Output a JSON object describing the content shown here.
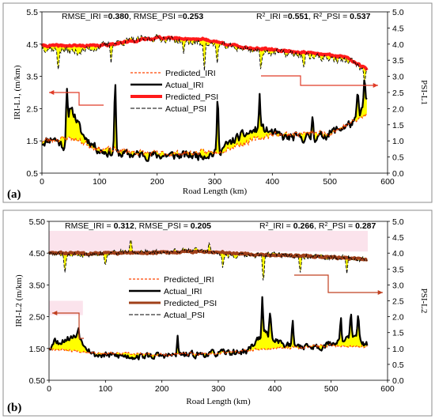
{
  "chart_data": [
    {
      "type": "line",
      "panel_label": "(a)",
      "xlabel": "Road Length (km)",
      "ylabel_left": "IRI-L1, (m/km)",
      "ylabel_right": "PSI-L1",
      "xlim": [
        0,
        600
      ],
      "ylim_left": [
        0.5,
        5.5
      ],
      "ylim_right": [
        0.0,
        5.0
      ],
      "x_ticks": [
        "0",
        "100",
        "200",
        "300",
        "400",
        "500",
        "600"
      ],
      "y_left_ticks": [
        "0.5",
        "1.5",
        "2.5",
        "3.5",
        "4.5",
        "5.5"
      ],
      "y_right_ticks": [
        "0.0",
        "0.5",
        "1.0",
        "1.5",
        "2.0",
        "2.5",
        "3.0",
        "3.5",
        "4.0",
        "4.5",
        "5.0"
      ],
      "stats_left": {
        "pre1": "RMSE_IRI =",
        "val1": "0.380",
        "pre2": ", RMSE_PSI =",
        "val2": "0.253"
      },
      "stats_right": {
        "r": "R",
        "sup": "2",
        "pre1": "_IRI =",
        "val1": "0.551",
        "mid": ",   R",
        "sup2": "2",
        "pre2": "_PSI = ",
        "val2": "0.537"
      },
      "legend": [
        "Predicted_IRI",
        "Actual_IRI",
        "Predicted_PSI",
        "Actual_PSI"
      ],
      "colors": {
        "predicted_iri": "#ff4500",
        "actual_iri": "#000000",
        "predicted_psi": "#ff1a1a",
        "actual_psi": "#000000",
        "fill": "#ffff00",
        "arrow": "#e03c28"
      },
      "series": [
        {
          "name": "Actual_IRI",
          "axis": "left",
          "seed": 11,
          "base": [
            [
              0,
              1.45
            ],
            [
              20,
              1.6
            ],
            [
              40,
              1.3
            ],
            [
              50,
              2.6
            ],
            [
              70,
              1.7
            ],
            [
              100,
              1.2
            ],
            [
              130,
              1.1
            ],
            [
              200,
              1.05
            ],
            [
              260,
              1.05
            ],
            [
              300,
              1.1
            ],
            [
              340,
              1.6
            ],
            [
              380,
              1.9
            ],
            [
              420,
              1.6
            ],
            [
              480,
              1.6
            ],
            [
              520,
              1.9
            ],
            [
              545,
              2.1
            ],
            [
              565,
              2.8
            ]
          ],
          "noise": 0.22,
          "spikes": [
            [
              43,
              3.25
            ],
            [
              127,
              3.55
            ],
            [
              305,
              3.0
            ],
            [
              378,
              2.9
            ],
            [
              470,
              2.4
            ],
            [
              548,
              3.1
            ],
            [
              560,
              3.4
            ]
          ]
        },
        {
          "name": "Predicted_IRI",
          "axis": "left",
          "seed": 23,
          "base": [
            [
              0,
              1.5
            ],
            [
              50,
              1.6
            ],
            [
              100,
              1.25
            ],
            [
              200,
              1.1
            ],
            [
              300,
              1.15
            ],
            [
              400,
              1.7
            ],
            [
              500,
              1.75
            ],
            [
              565,
              2.3
            ]
          ],
          "noise": 0.14,
          "spikes": []
        },
        {
          "name": "Actual_PSI",
          "axis": "right",
          "seed": 37,
          "base": [
            [
              0,
              3.9
            ],
            [
              60,
              3.75
            ],
            [
              130,
              4.05
            ],
            [
              200,
              4.2
            ],
            [
              260,
              4.05
            ],
            [
              330,
              3.9
            ],
            [
              400,
              3.75
            ],
            [
              480,
              3.6
            ],
            [
              540,
              3.45
            ],
            [
              565,
              3.1
            ]
          ],
          "noise": 0.18,
          "spikes": [
            [
              28,
              3.1
            ],
            [
              120,
              3.5
            ],
            [
              246,
              3.6
            ],
            [
              282,
              3.3
            ],
            [
              304,
              3.4
            ],
            [
              380,
              3.05
            ],
            [
              455,
              3.2
            ],
            [
              560,
              2.7
            ]
          ]
        },
        {
          "name": "Predicted_PSI",
          "axis": "right",
          "seed": 41,
          "base": [
            [
              0,
              3.95
            ],
            [
              100,
              3.95
            ],
            [
              200,
              4.2
            ],
            [
              280,
              4.15
            ],
            [
              350,
              3.9
            ],
            [
              450,
              3.75
            ],
            [
              530,
              3.6
            ],
            [
              565,
              3.2
            ]
          ],
          "noise": 0.05,
          "spikes": []
        }
      ]
    },
    {
      "type": "line",
      "panel_label": "(b)",
      "xlabel": "Road Length (km)",
      "ylabel_left": "IRI-L2 (m/km)",
      "ylabel_right": "PSI-L2",
      "xlim": [
        0,
        600
      ],
      "ylim_left": [
        0.5,
        5.5
      ],
      "ylim_right": [
        0.0,
        5.0
      ],
      "x_ticks": [
        "0",
        "100",
        "200",
        "300",
        "400",
        "500",
        "600"
      ],
      "y_left_ticks": [
        "0.50",
        "1.50",
        "2.50",
        "3.50",
        "4.50",
        "5.50"
      ],
      "y_right_ticks": [
        "0.0",
        "0.5",
        "1.0",
        "1.5",
        "2.0",
        "2.5",
        "3.0",
        "3.5",
        "4.0",
        "4.5",
        "5.0"
      ],
      "stats_left": {
        "pre1": "RMSE_IRI = ",
        "val1": "0.312",
        "pre2": ", RMSE_PSI = ",
        "val2": "0.205"
      },
      "stats_right": {
        "r": "R",
        "sup": "2",
        "pre1": "_IRI = ",
        "val1": "0.266",
        "mid": ", R",
        "sup2": "2",
        "pre2": "_PSI = ",
        "val2": "0.287"
      },
      "legend": [
        "Predicted_IRI",
        "Actual_IRI",
        "Predicted_PSI",
        "Actual_PSI"
      ],
      "colors": {
        "predicted_iri": "#ff4500",
        "actual_iri": "#000000",
        "predicted_psi": "#a0401a",
        "actual_psi": "#000000",
        "fill": "#ffff00",
        "arrow": "#c04020",
        "highlight": "#fbe3ec"
      },
      "series": [
        {
          "name": "Actual_IRI",
          "axis": "left",
          "seed": 53,
          "base": [
            [
              0,
              1.55
            ],
            [
              30,
              1.8
            ],
            [
              50,
              1.9
            ],
            [
              80,
              1.3
            ],
            [
              150,
              1.25
            ],
            [
              250,
              1.3
            ],
            [
              300,
              1.35
            ],
            [
              350,
              1.4
            ],
            [
              380,
              2.0
            ],
            [
              420,
              1.6
            ],
            [
              480,
              1.55
            ],
            [
              540,
              1.85
            ],
            [
              565,
              1.6
            ]
          ],
          "noise": 0.16,
          "spikes": [
            [
              10,
              1.95
            ],
            [
              52,
              2.25
            ],
            [
              228,
              1.85
            ],
            [
              378,
              3.05
            ],
            [
              392,
              2.8
            ],
            [
              432,
              2.4
            ],
            [
              517,
              2.6
            ],
            [
              535,
              2.7
            ],
            [
              548,
              2.6
            ]
          ]
        },
        {
          "name": "Predicted_IRI",
          "axis": "left",
          "seed": 67,
          "base": [
            [
              0,
              1.5
            ],
            [
              100,
              1.35
            ],
            [
              200,
              1.3
            ],
            [
              300,
              1.35
            ],
            [
              400,
              1.5
            ],
            [
              500,
              1.6
            ],
            [
              565,
              1.55
            ]
          ],
          "noise": 0.07,
          "spikes": []
        },
        {
          "name": "Actual_PSI",
          "axis": "right",
          "seed": 79,
          "base": [
            [
              0,
              4.0
            ],
            [
              60,
              3.95
            ],
            [
              100,
              4.0
            ],
            [
              140,
              4.05
            ],
            [
              200,
              4.05
            ],
            [
              280,
              4.1
            ],
            [
              330,
              3.9
            ],
            [
              400,
              3.95
            ],
            [
              470,
              3.9
            ],
            [
              530,
              3.85
            ],
            [
              565,
              3.8
            ]
          ],
          "noise": 0.14,
          "spikes": [
            [
              28,
              3.2
            ],
            [
              100,
              3.5
            ],
            [
              145,
              4.45
            ],
            [
              284,
              4.3
            ],
            [
              308,
              3.4
            ],
            [
              380,
              2.95
            ],
            [
              445,
              3.3
            ],
            [
              528,
              3.3
            ]
          ]
        },
        {
          "name": "Predicted_PSI",
          "axis": "right",
          "seed": 83,
          "base": [
            [
              0,
              4.0
            ],
            [
              150,
              4.0
            ],
            [
              280,
              4.05
            ],
            [
              380,
              3.95
            ],
            [
              480,
              3.9
            ],
            [
              565,
              3.8
            ]
          ],
          "noise": 0.05,
          "spikes": []
        }
      ]
    }
  ]
}
